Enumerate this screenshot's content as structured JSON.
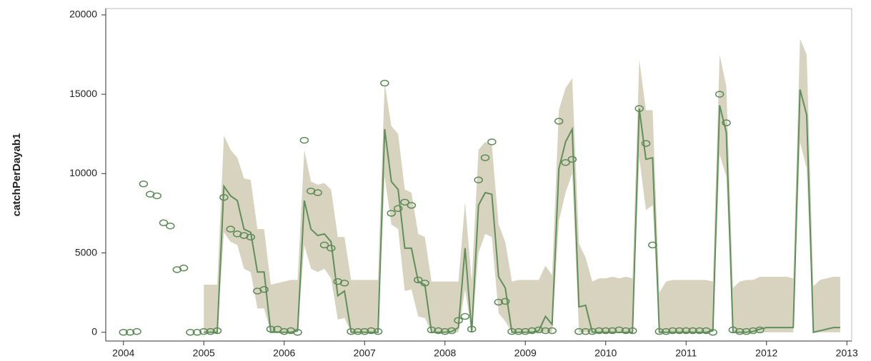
{
  "chart_data": {
    "type": "line",
    "ylabel": "catchPerDayab1",
    "xlim": [
      2003.78,
      2013.06
    ],
    "ylim": [
      -550,
      20400
    ],
    "xticks": [
      2004,
      2005,
      2006,
      2007,
      2008,
      2009,
      2010,
      2011,
      2012,
      2013
    ],
    "yticks": [
      0,
      5000,
      10000,
      15000,
      20000
    ],
    "series": [
      {
        "type": "band",
        "color": "#d8d3bf",
        "x": [
          2005,
          2005.083,
          2005.167,
          2005.25,
          2005.333,
          2005.417,
          2005.5,
          2005.583,
          2005.667,
          2005.75,
          2005.833,
          2005.917,
          2006,
          2006.083,
          2006.167,
          2006.25,
          2006.333,
          2006.417,
          2006.5,
          2006.583,
          2006.667,
          2006.75,
          2006.833,
          2006.917,
          2007,
          2007.083,
          2007.167,
          2007.25,
          2007.333,
          2007.417,
          2007.5,
          2007.583,
          2007.667,
          2007.75,
          2007.833,
          2007.917,
          2008,
          2008.083,
          2008.167,
          2008.25,
          2008.333,
          2008.417,
          2008.5,
          2008.583,
          2008.667,
          2008.75,
          2008.833,
          2008.917,
          2009,
          2009.083,
          2009.167,
          2009.25,
          2009.333,
          2009.417,
          2009.5,
          2009.583,
          2009.667,
          2009.75,
          2009.833,
          2009.917,
          2010,
          2010.083,
          2010.167,
          2010.25,
          2010.333,
          2010.417,
          2010.5,
          2010.583,
          2010.667,
          2010.75,
          2010.833,
          2010.917,
          2011,
          2011.083,
          2011.167,
          2011.25,
          2011.333,
          2011.417,
          2011.5,
          2011.583,
          2011.667,
          2011.75,
          2011.833,
          2011.917,
          2012,
          2012.083,
          2012.167,
          2012.25,
          2012.333,
          2012.417,
          2012.5,
          2012.583,
          2012.667,
          2012.75,
          2012.833,
          2012.917
        ],
        "upper": [
          3000,
          3000,
          3000,
          12400,
          11500,
          11000,
          9700,
          9600,
          6500,
          6500,
          3000,
          3100,
          3200,
          3300,
          3300,
          11500,
          9500,
          9300,
          9400,
          9000,
          6000,
          6000,
          3300,
          3300,
          3300,
          3300,
          3300,
          15700,
          13000,
          12500,
          9000,
          8800,
          6200,
          6000,
          3200,
          3200,
          3200,
          3200,
          3200,
          8200,
          3200,
          11500,
          12000,
          11800,
          6800,
          5700,
          3200,
          3300,
          3300,
          3300,
          3300,
          4200,
          3600,
          14000,
          15400,
          16000,
          5600,
          4700,
          3200,
          3400,
          3400,
          3500,
          3400,
          3500,
          3400,
          17200,
          14000,
          14000,
          2500,
          3200,
          3300,
          3300,
          3300,
          3300,
          3300,
          3300,
          3200,
          17500,
          15500,
          2800,
          3200,
          3300,
          3300,
          3500,
          3500,
          3500,
          3500,
          3500,
          3400,
          18500,
          17500,
          2900,
          3300,
          3400,
          3500,
          3500
        ],
        "lower": [
          0,
          0,
          0,
          6300,
          5700,
          5500,
          4000,
          3800,
          1500,
          1500,
          0,
          0,
          0,
          0,
          0,
          5500,
          4000,
          3800,
          4000,
          3400,
          800,
          900,
          0,
          0,
          0,
          0,
          0,
          9800,
          6800,
          6500,
          2600,
          2700,
          1000,
          900,
          0,
          0,
          0,
          0,
          0,
          2700,
          0,
          5000,
          6200,
          6000,
          1200,
          700,
          0,
          0,
          0,
          0,
          0,
          0,
          0,
          7000,
          8800,
          10000,
          0,
          0,
          0,
          0,
          0,
          0,
          0,
          0,
          0,
          11000,
          7700,
          8000,
          0,
          0,
          0,
          0,
          0,
          0,
          0,
          0,
          0,
          11200,
          9800,
          0,
          0,
          0,
          0,
          0,
          0,
          0,
          0,
          0,
          0,
          12000,
          10300,
          0,
          0,
          0,
          0,
          0
        ]
      },
      {
        "type": "line",
        "color": "#5f8f5a",
        "x": [
          2005,
          2005.083,
          2005.167,
          2005.25,
          2005.333,
          2005.417,
          2005.5,
          2005.583,
          2005.667,
          2005.75,
          2005.833,
          2005.917,
          2006,
          2006.083,
          2006.167,
          2006.25,
          2006.333,
          2006.417,
          2006.5,
          2006.583,
          2006.667,
          2006.75,
          2006.833,
          2006.917,
          2007,
          2007.083,
          2007.167,
          2007.25,
          2007.333,
          2007.417,
          2007.5,
          2007.583,
          2007.667,
          2007.75,
          2007.833,
          2007.917,
          2008,
          2008.083,
          2008.167,
          2008.25,
          2008.333,
          2008.417,
          2008.5,
          2008.583,
          2008.667,
          2008.75,
          2008.833,
          2008.917,
          2009,
          2009.083,
          2009.167,
          2009.25,
          2009.333,
          2009.417,
          2009.5,
          2009.583,
          2009.667,
          2009.75,
          2009.833,
          2009.917,
          2010,
          2010.083,
          2010.167,
          2010.25,
          2010.333,
          2010.417,
          2010.5,
          2010.583,
          2010.667,
          2010.75,
          2010.833,
          2010.917,
          2011,
          2011.083,
          2011.167,
          2011.25,
          2011.333,
          2011.417,
          2011.5,
          2011.583,
          2011.667,
          2011.75,
          2011.833,
          2011.917,
          2012,
          2012.083,
          2012.167,
          2012.25,
          2012.333,
          2012.417,
          2012.5,
          2012.583,
          2012.667,
          2012.75,
          2012.833,
          2012.917
        ],
        "values": [
          0,
          0,
          0,
          9200,
          8600,
          8300,
          6500,
          6300,
          3800,
          3800,
          0,
          0,
          0,
          0,
          100,
          8300,
          6500,
          6100,
          6200,
          5700,
          2300,
          2600,
          0,
          0,
          0,
          0,
          0,
          12800,
          9500,
          9000,
          5300,
          5300,
          3200,
          3000,
          0,
          0,
          0,
          50,
          300,
          5300,
          0,
          8000,
          8800,
          8700,
          3500,
          2800,
          0,
          0,
          0,
          0,
          100,
          1000,
          500,
          10300,
          12000,
          12800,
          1600,
          1700,
          0,
          0,
          0,
          0,
          0,
          0,
          0,
          14100,
          10900,
          11000,
          0,
          0,
          0,
          0,
          0,
          0,
          0,
          0,
          100,
          14300,
          12600,
          0,
          0,
          0,
          50,
          200,
          300,
          300,
          300,
          300,
          300,
          15300,
          13700,
          0,
          100,
          200,
          300,
          300
        ]
      },
      {
        "type": "scatter",
        "color": "#5a8a55",
        "x": [
          2004,
          2004.083,
          2004.167,
          2004.25,
          2004.333,
          2004.417,
          2004.5,
          2004.583,
          2004.667,
          2004.75,
          2004.833,
          2004.917,
          2005,
          2005.083,
          2005.167,
          2005.25,
          2005.333,
          2005.417,
          2005.5,
          2005.583,
          2005.667,
          2005.75,
          2005.833,
          2005.917,
          2006,
          2006.083,
          2006.167,
          2006.25,
          2006.333,
          2006.417,
          2006.5,
          2006.583,
          2006.667,
          2006.75,
          2006.833,
          2006.917,
          2007,
          2007.083,
          2007.167,
          2007.25,
          2007.333,
          2007.417,
          2007.5,
          2007.583,
          2007.667,
          2007.75,
          2007.833,
          2007.917,
          2008,
          2008.083,
          2008.167,
          2008.25,
          2008.333,
          2008.417,
          2008.5,
          2008.583,
          2008.667,
          2008.75,
          2008.833,
          2008.917,
          2009,
          2009.083,
          2009.167,
          2009.25,
          2009.333,
          2009.417,
          2009.5,
          2009.583,
          2009.667,
          2009.75,
          2009.833,
          2009.917,
          2010,
          2010.083,
          2010.167,
          2010.25,
          2010.333,
          2010.417,
          2010.5,
          2010.583,
          2010.667,
          2010.75,
          2010.833,
          2010.917,
          2011,
          2011.083,
          2011.167,
          2011.25,
          2011.333,
          2011.417,
          2011.5,
          2011.583,
          2011.667,
          2011.75,
          2011.833,
          2011.917
        ],
        "values": [
          0,
          0,
          50,
          9350,
          8700,
          8600,
          6900,
          6700,
          3950,
          4050,
          0,
          0,
          50,
          50,
          100,
          8500,
          6500,
          6200,
          6100,
          6000,
          2600,
          2700,
          200,
          200,
          50,
          100,
          0,
          12100,
          8900,
          8800,
          5500,
          5300,
          3200,
          3100,
          50,
          50,
          50,
          100,
          50,
          15700,
          7500,
          7800,
          8200,
          8000,
          3300,
          3100,
          150,
          100,
          50,
          100,
          750,
          1000,
          200,
          9600,
          11000,
          12000,
          1900,
          1950,
          50,
          50,
          50,
          100,
          150,
          100,
          100,
          13300,
          10700,
          10900,
          50,
          50,
          50,
          100,
          100,
          100,
          150,
          100,
          100,
          14100,
          11900,
          5500,
          50,
          50,
          100,
          100,
          100,
          100,
          100,
          100,
          0,
          15000,
          13200,
          150,
          50,
          50,
          100,
          150
        ]
      }
    ]
  }
}
